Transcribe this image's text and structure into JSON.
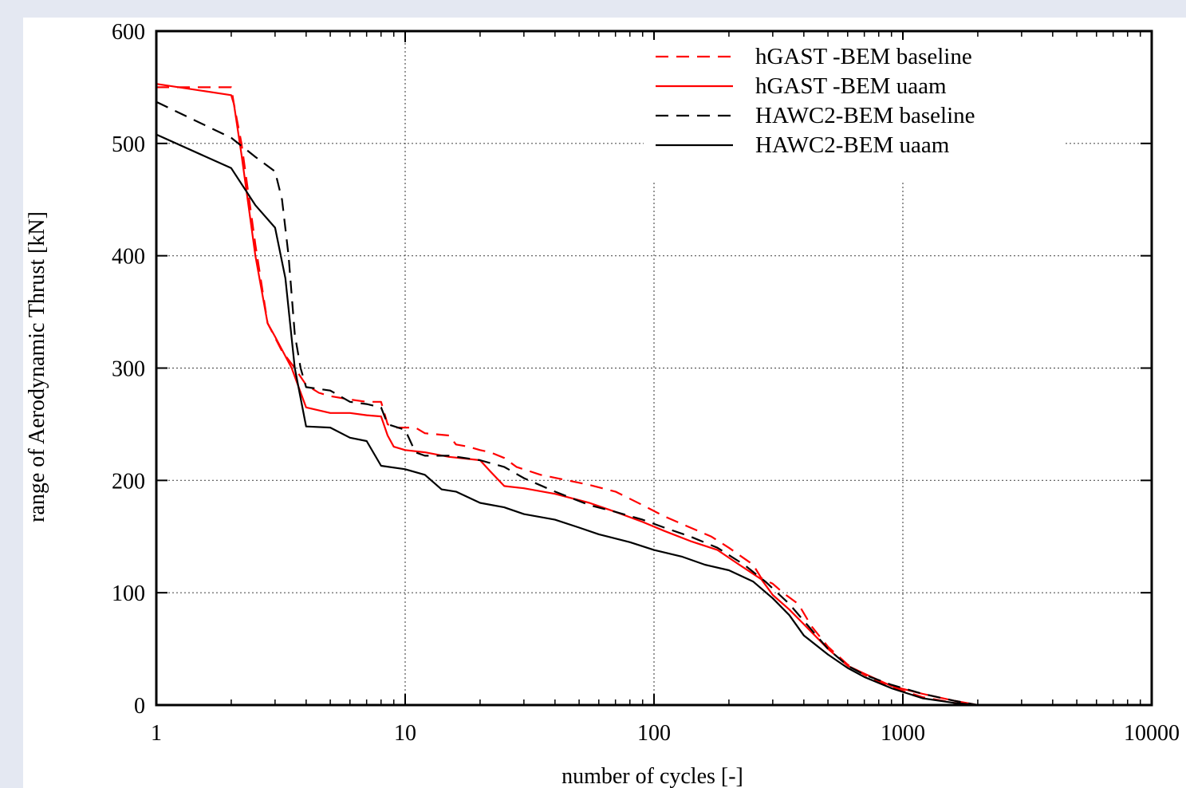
{
  "chart_data": {
    "type": "line",
    "x_scale": "log",
    "xlim": [
      1,
      10000
    ],
    "ylim": [
      0,
      600
    ],
    "xlabel": "number of cycles [-]",
    "ylabel": "range of  Aerodynamic Thrust [kN]",
    "x_ticks": [
      1,
      10,
      100,
      1000,
      10000
    ],
    "x_tick_labels": [
      "1",
      "10",
      "100",
      "1000",
      "10000"
    ],
    "y_ticks": [
      0,
      100,
      200,
      300,
      400,
      500,
      600
    ],
    "y_tick_labels": [
      "0",
      "100",
      "200",
      "300",
      "400",
      "500",
      "600"
    ],
    "grid": true,
    "legend_position": "top-right",
    "series": [
      {
        "name": "hGAST -BEM   baseline",
        "color": "#ff0000",
        "dash": "dashed",
        "points": [
          [
            1,
            550
          ],
          [
            2,
            550
          ],
          [
            2.05,
            535
          ],
          [
            2.2,
            500
          ],
          [
            2.5,
            410
          ],
          [
            2.8,
            340
          ],
          [
            3.2,
            315
          ],
          [
            3.6,
            300
          ],
          [
            4,
            285
          ],
          [
            4.5,
            278
          ],
          [
            5,
            275
          ],
          [
            6,
            272
          ],
          [
            7,
            270
          ],
          [
            8,
            270
          ],
          [
            8.5,
            250
          ],
          [
            9,
            247
          ],
          [
            10,
            247
          ],
          [
            11,
            247
          ],
          [
            12,
            242
          ],
          [
            15,
            240
          ],
          [
            16,
            232
          ],
          [
            18,
            230
          ],
          [
            20,
            227
          ],
          [
            22,
            225
          ],
          [
            25,
            220
          ],
          [
            28,
            212
          ],
          [
            35,
            205
          ],
          [
            45,
            200
          ],
          [
            55,
            196
          ],
          [
            70,
            190
          ],
          [
            90,
            178
          ],
          [
            110,
            168
          ],
          [
            140,
            158
          ],
          [
            170,
            150
          ],
          [
            200,
            140
          ],
          [
            250,
            125
          ],
          [
            270,
            113
          ],
          [
            300,
            108
          ],
          [
            330,
            100
          ],
          [
            380,
            90
          ],
          [
            430,
            70
          ],
          [
            500,
            52
          ],
          [
            600,
            36
          ],
          [
            700,
            27
          ],
          [
            900,
            16
          ],
          [
            1200,
            7
          ],
          [
            1600,
            2
          ],
          [
            2000,
            0
          ]
        ]
      },
      {
        "name": "hGAST -BEM   uaam",
        "color": "#ff0000",
        "dash": "solid",
        "points": [
          [
            1,
            553
          ],
          [
            2,
            543
          ],
          [
            2.05,
            535
          ],
          [
            2.2,
            490
          ],
          [
            2.5,
            400
          ],
          [
            2.8,
            340
          ],
          [
            3,
            328
          ],
          [
            3.5,
            300
          ],
          [
            4,
            265
          ],
          [
            5,
            260
          ],
          [
            6,
            260
          ],
          [
            7,
            258
          ],
          [
            8,
            257
          ],
          [
            8.5,
            240
          ],
          [
            9,
            230
          ],
          [
            10,
            227
          ],
          [
            12,
            225
          ],
          [
            15,
            221
          ],
          [
            20,
            218
          ],
          [
            22,
            208
          ],
          [
            25,
            195
          ],
          [
            30,
            193
          ],
          [
            40,
            188
          ],
          [
            55,
            180
          ],
          [
            70,
            172
          ],
          [
            90,
            163
          ],
          [
            110,
            155
          ],
          [
            140,
            146
          ],
          [
            180,
            138
          ],
          [
            220,
            125
          ],
          [
            270,
            112
          ],
          [
            300,
            98
          ],
          [
            350,
            85
          ],
          [
            400,
            72
          ],
          [
            500,
            50
          ],
          [
            600,
            35
          ],
          [
            700,
            28
          ],
          [
            900,
            17
          ],
          [
            1200,
            10
          ],
          [
            1600,
            4
          ],
          [
            2000,
            0
          ]
        ]
      },
      {
        "name": "HAWC2-BEM  baseline",
        "color": "#000000",
        "dash": "dashed",
        "points": [
          [
            1,
            537
          ],
          [
            2,
            505
          ],
          [
            2.5,
            488
          ],
          [
            3,
            475
          ],
          [
            3.2,
            450
          ],
          [
            3.4,
            400
          ],
          [
            3.6,
            330
          ],
          [
            3.8,
            300
          ],
          [
            4,
            283
          ],
          [
            5,
            280
          ],
          [
            6,
            270
          ],
          [
            7,
            268
          ],
          [
            8,
            265
          ],
          [
            8.5,
            250
          ],
          [
            10,
            245
          ],
          [
            11,
            225
          ],
          [
            12,
            222
          ],
          [
            15,
            222
          ],
          [
            20,
            218
          ],
          [
            25,
            212
          ],
          [
            30,
            202
          ],
          [
            40,
            190
          ],
          [
            55,
            178
          ],
          [
            70,
            172
          ],
          [
            90,
            165
          ],
          [
            110,
            158
          ],
          [
            140,
            150
          ],
          [
            180,
            140
          ],
          [
            230,
            125
          ],
          [
            280,
            110
          ],
          [
            320,
            98
          ],
          [
            350,
            90
          ],
          [
            400,
            75
          ],
          [
            500,
            50
          ],
          [
            600,
            35
          ],
          [
            700,
            27
          ],
          [
            900,
            18
          ],
          [
            1200,
            10
          ],
          [
            1600,
            4
          ],
          [
            2000,
            0
          ]
        ]
      },
      {
        "name": "HAWC2-BEM  uaam",
        "color": "#000000",
        "dash": "solid",
        "points": [
          [
            1,
            508
          ],
          [
            2,
            478
          ],
          [
            2.5,
            445
          ],
          [
            3,
            425
          ],
          [
            3.3,
            380
          ],
          [
            3.6,
            300
          ],
          [
            4,
            248
          ],
          [
            5,
            247
          ],
          [
            6,
            238
          ],
          [
            7,
            235
          ],
          [
            8,
            213
          ],
          [
            10,
            210
          ],
          [
            12,
            205
          ],
          [
            14,
            192
          ],
          [
            16,
            190
          ],
          [
            20,
            180
          ],
          [
            25,
            176
          ],
          [
            30,
            170
          ],
          [
            40,
            165
          ],
          [
            50,
            158
          ],
          [
            60,
            152
          ],
          [
            80,
            145
          ],
          [
            100,
            138
          ],
          [
            130,
            132
          ],
          [
            160,
            125
          ],
          [
            200,
            120
          ],
          [
            250,
            110
          ],
          [
            300,
            95
          ],
          [
            350,
            80
          ],
          [
            400,
            62
          ],
          [
            500,
            45
          ],
          [
            600,
            33
          ],
          [
            700,
            25
          ],
          [
            900,
            15
          ],
          [
            1200,
            6
          ],
          [
            1600,
            2
          ],
          [
            2000,
            0
          ]
        ]
      }
    ]
  }
}
